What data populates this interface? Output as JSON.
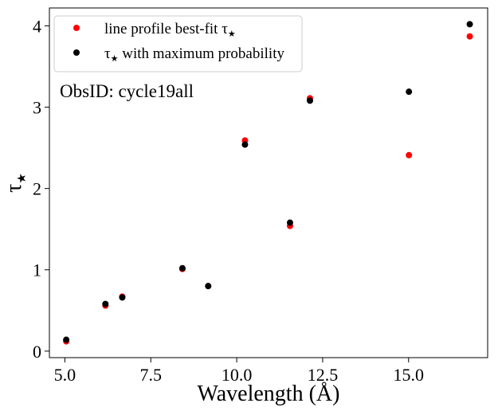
{
  "chart_data": {
    "type": "scatter",
    "xlabel": "Wavelength (Å)",
    "ylabel_main": "τ",
    "ylabel_sub": "★",
    "xlim": [
      4.55,
      17.3
    ],
    "ylim": [
      -0.08,
      4.22
    ],
    "xticks": [
      5.0,
      7.5,
      10.0,
      12.5,
      15.0
    ],
    "xtick_labels": [
      "5.0",
      "7.5",
      "10.0",
      "12.5",
      "15.0"
    ],
    "yticks": [
      0,
      1,
      2,
      3,
      4
    ],
    "ytick_labels": [
      "0",
      "1",
      "2",
      "3",
      "4"
    ],
    "legend_position": "top-left",
    "annotation": "ObsID: cycle19all",
    "series": [
      {
        "name": "line profile best-fit τ",
        "name_sub": "★",
        "color": "#ff0000",
        "points": [
          [
            5.04,
            0.12
          ],
          [
            6.18,
            0.56
          ],
          [
            6.67,
            0.67
          ],
          [
            8.42,
            1.01
          ],
          [
            9.17,
            0.8
          ],
          [
            10.24,
            2.59
          ],
          [
            11.55,
            1.54
          ],
          [
            12.13,
            3.11
          ],
          [
            15.01,
            2.41
          ],
          [
            16.78,
            3.87
          ]
        ]
      },
      {
        "name": "τ",
        "name_suffix": " with maximum probability",
        "name_sub": "★",
        "color": "#000000",
        "points": [
          [
            5.04,
            0.14
          ],
          [
            6.18,
            0.58
          ],
          [
            6.67,
            0.66
          ],
          [
            8.42,
            1.02
          ],
          [
            9.17,
            0.8
          ],
          [
            10.24,
            2.54
          ],
          [
            11.55,
            1.58
          ],
          [
            12.13,
            3.08
          ],
          [
            15.01,
            3.19
          ],
          [
            16.78,
            4.02
          ]
        ]
      }
    ]
  }
}
